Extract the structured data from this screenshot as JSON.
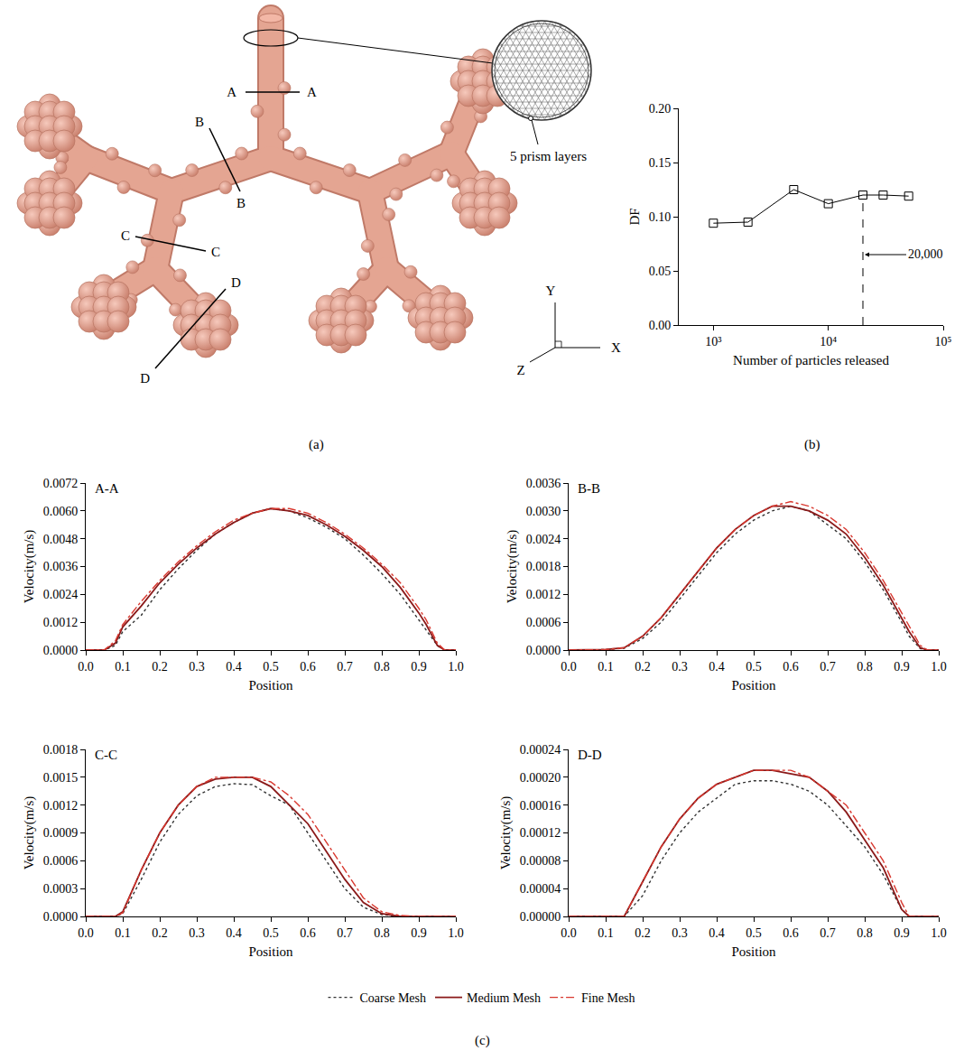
{
  "panel_labels": [
    "(a)",
    "(b)",
    "(c)"
  ],
  "diagram": {
    "sections": [
      [
        "A",
        "A"
      ],
      [
        "B",
        "B"
      ],
      [
        "C",
        "C"
      ],
      [
        "D",
        "D"
      ]
    ],
    "inset_label": "5 prism layers",
    "axes": [
      "Y",
      "X",
      "Z"
    ]
  },
  "chart_data": [
    {
      "type": "line",
      "x": [
        1000,
        2000,
        5000,
        10000,
        20000,
        30000,
        50000
      ],
      "values": [
        0.094,
        0.095,
        0.125,
        0.112,
        0.12,
        0.12,
        0.119
      ],
      "color": "#000000",
      "marker": "square-open",
      "log": "x",
      "xlim": [
        500,
        100000
      ],
      "xticks": [
        {
          "value": 1000,
          "label": "10³"
        },
        {
          "value": 10000,
          "label": "10⁴"
        },
        {
          "value": 100000,
          "label": "10⁵"
        }
      ],
      "ylim": [
        0,
        0.2
      ],
      "yticks": [
        {
          "value": 0,
          "label": "0.00"
        },
        {
          "value": 0.05,
          "label": "0.05"
        },
        {
          "value": 0.1,
          "label": "0.10"
        },
        {
          "value": 0.15,
          "label": "0.15"
        },
        {
          "value": 0.2,
          "label": "0.20"
        }
      ],
      "x_label": "Number of particles released",
      "y_label": "DF",
      "vline": {
        "x": 20000,
        "line_style": "dashed"
      },
      "annotations": [
        {
          "text": "20,000",
          "x": 20000,
          "y": 0.065
        }
      ]
    },
    {
      "type": "line",
      "title": "A-A",
      "x": [
        0,
        0.05,
        0.08,
        0.1,
        0.15,
        0.2,
        0.25,
        0.3,
        0.35,
        0.4,
        0.45,
        0.5,
        0.55,
        0.6,
        0.65,
        0.7,
        0.75,
        0.8,
        0.85,
        0.9,
        0.92,
        0.95,
        0.97,
        1.0
      ],
      "series": [
        {
          "name": "Coarse Mesh",
          "color": "#333333",
          "line_style": "dotted",
          "values": [
            0,
            0,
            0.0002,
            0.0008,
            0.0015,
            0.0026,
            0.0035,
            0.0043,
            0.005,
            0.0055,
            0.0059,
            0.0061,
            0.006,
            0.0057,
            0.0053,
            0.0048,
            0.0041,
            0.0033,
            0.0024,
            0.0013,
            0.0009,
            0.0002,
            0,
            0
          ]
        },
        {
          "name": "Medium Mesh",
          "color": "#8b1a1a",
          "line_style": "solid",
          "values": [
            0,
            0,
            0.0003,
            0.001,
            0.0019,
            0.0029,
            0.0037,
            0.0044,
            0.005,
            0.0055,
            0.0059,
            0.0061,
            0.006,
            0.0058,
            0.0054,
            0.0049,
            0.0043,
            0.0036,
            0.0027,
            0.0016,
            0.0011,
            0.0002,
            0,
            0
          ]
        },
        {
          "name": "Fine Mesh",
          "color": "#d9382f",
          "line_style": "dashdot",
          "values": [
            0,
            0,
            0.0004,
            0.0011,
            0.0021,
            0.003,
            0.0038,
            0.0045,
            0.0051,
            0.0056,
            0.0059,
            0.0061,
            0.0061,
            0.0059,
            0.0055,
            0.005,
            0.0044,
            0.0037,
            0.0029,
            0.0018,
            0.0013,
            0.0003,
            0,
            0
          ]
        }
      ],
      "xlim": [
        0,
        1
      ],
      "xticks": [
        {
          "value": 0,
          "label": "0.0"
        },
        0.1,
        0.2,
        0.3,
        0.4,
        0.5,
        0.6,
        0.7,
        0.8,
        0.9,
        {
          "value": 1,
          "label": "1.0"
        }
      ],
      "ylim": [
        0,
        0.0072
      ],
      "yticks": [
        {
          "value": 0,
          "label": "0.0000"
        },
        {
          "value": 0.0012,
          "label": "0.0012"
        },
        {
          "value": 0.0024,
          "label": "0.0024"
        },
        {
          "value": 0.0036,
          "label": "0.0036"
        },
        {
          "value": 0.0048,
          "label": "0.0048"
        },
        {
          "value": 0.006,
          "label": "0.0060"
        },
        {
          "value": 0.0072,
          "label": "0.0072"
        }
      ],
      "x_label": "Position",
      "y_label": "Velocity(m/s)",
      "legend": "bottom"
    },
    {
      "type": "line",
      "title": "B-B",
      "x": [
        0,
        0.05,
        0.08,
        0.1,
        0.15,
        0.2,
        0.25,
        0.3,
        0.35,
        0.4,
        0.45,
        0.5,
        0.55,
        0.6,
        0.65,
        0.7,
        0.75,
        0.8,
        0.85,
        0.9,
        0.92,
        0.95,
        0.97,
        1.0
      ],
      "series": [
        {
          "name": "Coarse Mesh",
          "color": "#333333",
          "line_style": "dotted",
          "values": [
            0,
            0,
            1e-05,
            1e-05,
            4e-05,
            0.00025,
            0.0006,
            0.0011,
            0.0016,
            0.0021,
            0.0025,
            0.0028,
            0.003,
            0.0031,
            0.003,
            0.0027,
            0.0024,
            0.0019,
            0.0013,
            0.0006,
            0.0003,
            3e-05,
            0,
            0
          ]
        },
        {
          "name": "Medium Mesh",
          "color": "#8b1a1a",
          "line_style": "solid",
          "values": [
            0,
            0,
            1e-05,
            1e-05,
            5e-05,
            0.0003,
            0.0007,
            0.0012,
            0.0017,
            0.0022,
            0.0026,
            0.0029,
            0.0031,
            0.0031,
            0.003,
            0.0028,
            0.0025,
            0.002,
            0.0014,
            0.0007,
            0.0004,
            5e-05,
            0,
            0
          ]
        },
        {
          "name": "Fine Mesh",
          "color": "#d9382f",
          "line_style": "dashdot",
          "values": [
            0,
            0,
            1e-05,
            1e-05,
            5e-05,
            0.0003,
            0.0007,
            0.0012,
            0.0017,
            0.0022,
            0.0026,
            0.0029,
            0.0031,
            0.0032,
            0.0031,
            0.0029,
            0.0026,
            0.0021,
            0.0015,
            0.0008,
            0.0005,
            0.0001,
            0,
            0
          ]
        }
      ],
      "xlim": [
        0,
        1
      ],
      "xticks": [
        {
          "value": 0,
          "label": "0.0"
        },
        0.1,
        0.2,
        0.3,
        0.4,
        0.5,
        0.6,
        0.7,
        0.8,
        0.9,
        {
          "value": 1,
          "label": "1.0"
        }
      ],
      "ylim": [
        0,
        0.0036
      ],
      "yticks": [
        {
          "value": 0,
          "label": "0.0000"
        },
        {
          "value": 0.0006,
          "label": "0.0006"
        },
        {
          "value": 0.0012,
          "label": "0.0012"
        },
        {
          "value": 0.0018,
          "label": "0.0018"
        },
        {
          "value": 0.0024,
          "label": "0.0024"
        },
        {
          "value": 0.003,
          "label": "0.0030"
        },
        {
          "value": 0.0036,
          "label": "0.0036"
        }
      ],
      "x_label": "Position",
      "y_label": "Velocity(m/s)",
      "legend": "bottom"
    },
    {
      "type": "line",
      "title": "C-C",
      "x": [
        0,
        0.05,
        0.08,
        0.1,
        0.15,
        0.2,
        0.25,
        0.3,
        0.35,
        0.4,
        0.45,
        0.5,
        0.55,
        0.6,
        0.65,
        0.7,
        0.75,
        0.8,
        0.85,
        0.9,
        0.92,
        0.95,
        0.97,
        1.0
      ],
      "series": [
        {
          "name": "Coarse Mesh",
          "color": "#333333",
          "line_style": "dotted",
          "values": [
            0,
            0,
            0,
            3e-05,
            0.0004,
            0.0008,
            0.0011,
            0.0013,
            0.0014,
            0.00143,
            0.00142,
            0.0013,
            0.0012,
            0.0009,
            0.0006,
            0.0003,
            0.0001,
            2e-05,
            0,
            0,
            0,
            0,
            0,
            0
          ]
        },
        {
          "name": "Medium Mesh",
          "color": "#8b1a1a",
          "line_style": "solid",
          "values": [
            0,
            0,
            0,
            5e-05,
            0.0005,
            0.0009,
            0.0012,
            0.0014,
            0.00148,
            0.0015,
            0.0015,
            0.0014,
            0.0012,
            0.001,
            0.0007,
            0.0004,
            0.00015,
            3e-05,
            0,
            0,
            0,
            0,
            0,
            0
          ]
        },
        {
          "name": "Fine Mesh",
          "color": "#d9382f",
          "line_style": "dashdot",
          "values": [
            0,
            0,
            0,
            4e-05,
            0.0005,
            0.0009,
            0.0012,
            0.0014,
            0.0015,
            0.0015,
            0.0015,
            0.00145,
            0.0013,
            0.0011,
            0.0008,
            0.0005,
            0.0002,
            5e-05,
            1e-05,
            0,
            0,
            0,
            0,
            0
          ]
        }
      ],
      "xlim": [
        0,
        1
      ],
      "xticks": [
        {
          "value": 0,
          "label": "0.0"
        },
        0.1,
        0.2,
        0.3,
        0.4,
        0.5,
        0.6,
        0.7,
        0.8,
        0.9,
        {
          "value": 1,
          "label": "1.0"
        }
      ],
      "ylim": [
        0,
        0.0018
      ],
      "yticks": [
        {
          "value": 0,
          "label": "0.0000"
        },
        {
          "value": 0.0003,
          "label": "0.0003"
        },
        {
          "value": 0.0006,
          "label": "0.0006"
        },
        {
          "value": 0.0009,
          "label": "0.0009"
        },
        {
          "value": 0.0012,
          "label": "0.0012"
        },
        {
          "value": 0.0015,
          "label": "0.0015"
        },
        {
          "value": 0.0018,
          "label": "0.0018"
        }
      ],
      "x_label": "Position",
      "y_label": "Velocity(m/s)",
      "legend": "bottom"
    },
    {
      "type": "line",
      "title": "D-D",
      "x": [
        0,
        0.05,
        0.08,
        0.1,
        0.15,
        0.2,
        0.25,
        0.3,
        0.35,
        0.4,
        0.45,
        0.5,
        0.55,
        0.6,
        0.65,
        0.7,
        0.75,
        0.8,
        0.85,
        0.9,
        0.92,
        0.95,
        0.97,
        1.0
      ],
      "series": [
        {
          "name": "Coarse Mesh",
          "color": "#333333",
          "line_style": "dotted",
          "values": [
            0,
            0,
            0,
            0,
            0,
            3e-05,
            8e-05,
            0.00012,
            0.00015,
            0.00017,
            0.00019,
            0.000195,
            0.000195,
            0.00019,
            0.00018,
            0.00016,
            0.00013,
            0.0001,
            6e-05,
            1e-05,
            0,
            0,
            0,
            0
          ]
        },
        {
          "name": "Medium Mesh",
          "color": "#8b1a1a",
          "line_style": "solid",
          "values": [
            0,
            0,
            0,
            0,
            0,
            5e-05,
            0.0001,
            0.00014,
            0.00017,
            0.00019,
            0.0002,
            0.00021,
            0.00021,
            0.000205,
            0.0002,
            0.00018,
            0.00015,
            0.00011,
            7e-05,
            1e-05,
            0,
            0,
            0,
            0
          ]
        },
        {
          "name": "Fine Mesh",
          "color": "#d9382f",
          "line_style": "dashdot",
          "values": [
            0,
            0,
            0,
            0,
            0,
            5e-05,
            0.0001,
            0.00014,
            0.00017,
            0.00019,
            0.0002,
            0.00021,
            0.00021,
            0.00021,
            0.0002,
            0.00018,
            0.00016,
            0.00012,
            8e-05,
            2e-05,
            0,
            0,
            0,
            0
          ]
        }
      ],
      "xlim": [
        0,
        1
      ],
      "xticks": [
        {
          "value": 0,
          "label": "0.0"
        },
        0.1,
        0.2,
        0.3,
        0.4,
        0.5,
        0.6,
        0.7,
        0.8,
        0.9,
        {
          "value": 1,
          "label": "1.0"
        }
      ],
      "ylim": [
        0,
        0.00024
      ],
      "yticks": [
        {
          "value": 0,
          "label": "0.00000"
        },
        {
          "value": 4e-05,
          "label": "0.00004"
        },
        {
          "value": 8e-05,
          "label": "0.00008"
        },
        {
          "value": 0.00012,
          "label": "0.00012"
        },
        {
          "value": 0.00016,
          "label": "0.00016"
        },
        {
          "value": 0.0002,
          "label": "0.00020"
        },
        {
          "value": 0.00024,
          "label": "0.00024"
        }
      ],
      "x_label": "Position",
      "y_label": "Velocity(m/s)",
      "legend": "bottom"
    }
  ]
}
